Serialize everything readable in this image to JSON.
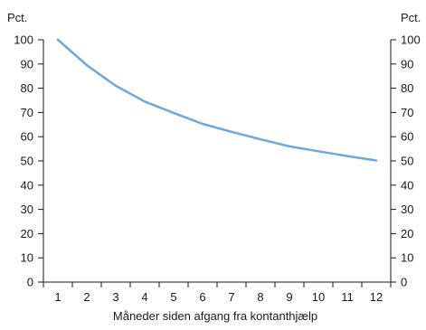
{
  "chart_data": {
    "type": "line",
    "x": [
      1,
      2,
      3,
      4,
      5,
      6,
      7,
      8,
      9,
      10,
      11,
      12
    ],
    "categories": [
      "1",
      "2",
      "3",
      "4",
      "5",
      "6",
      "7",
      "8",
      "9",
      "10",
      "11",
      "12"
    ],
    "series": [
      {
        "values": [
          100,
          89.5,
          81,
          74.5,
          69.8,
          65.3,
          62,
          58.9,
          56,
          54,
          52,
          50.2
        ],
        "color": "#6fa8d6"
      }
    ],
    "xlabel": "Måneder siden afgang fra kontanthjælp",
    "ylabel_left": "Pct.",
    "ylabel_right": "Pct.",
    "ylim": [
      0,
      100
    ],
    "yticks": [
      0,
      10,
      20,
      30,
      40,
      50,
      60,
      70,
      80,
      90,
      100
    ],
    "grid": false,
    "legend": "none",
    "axis_color": "#1a1a1a"
  }
}
